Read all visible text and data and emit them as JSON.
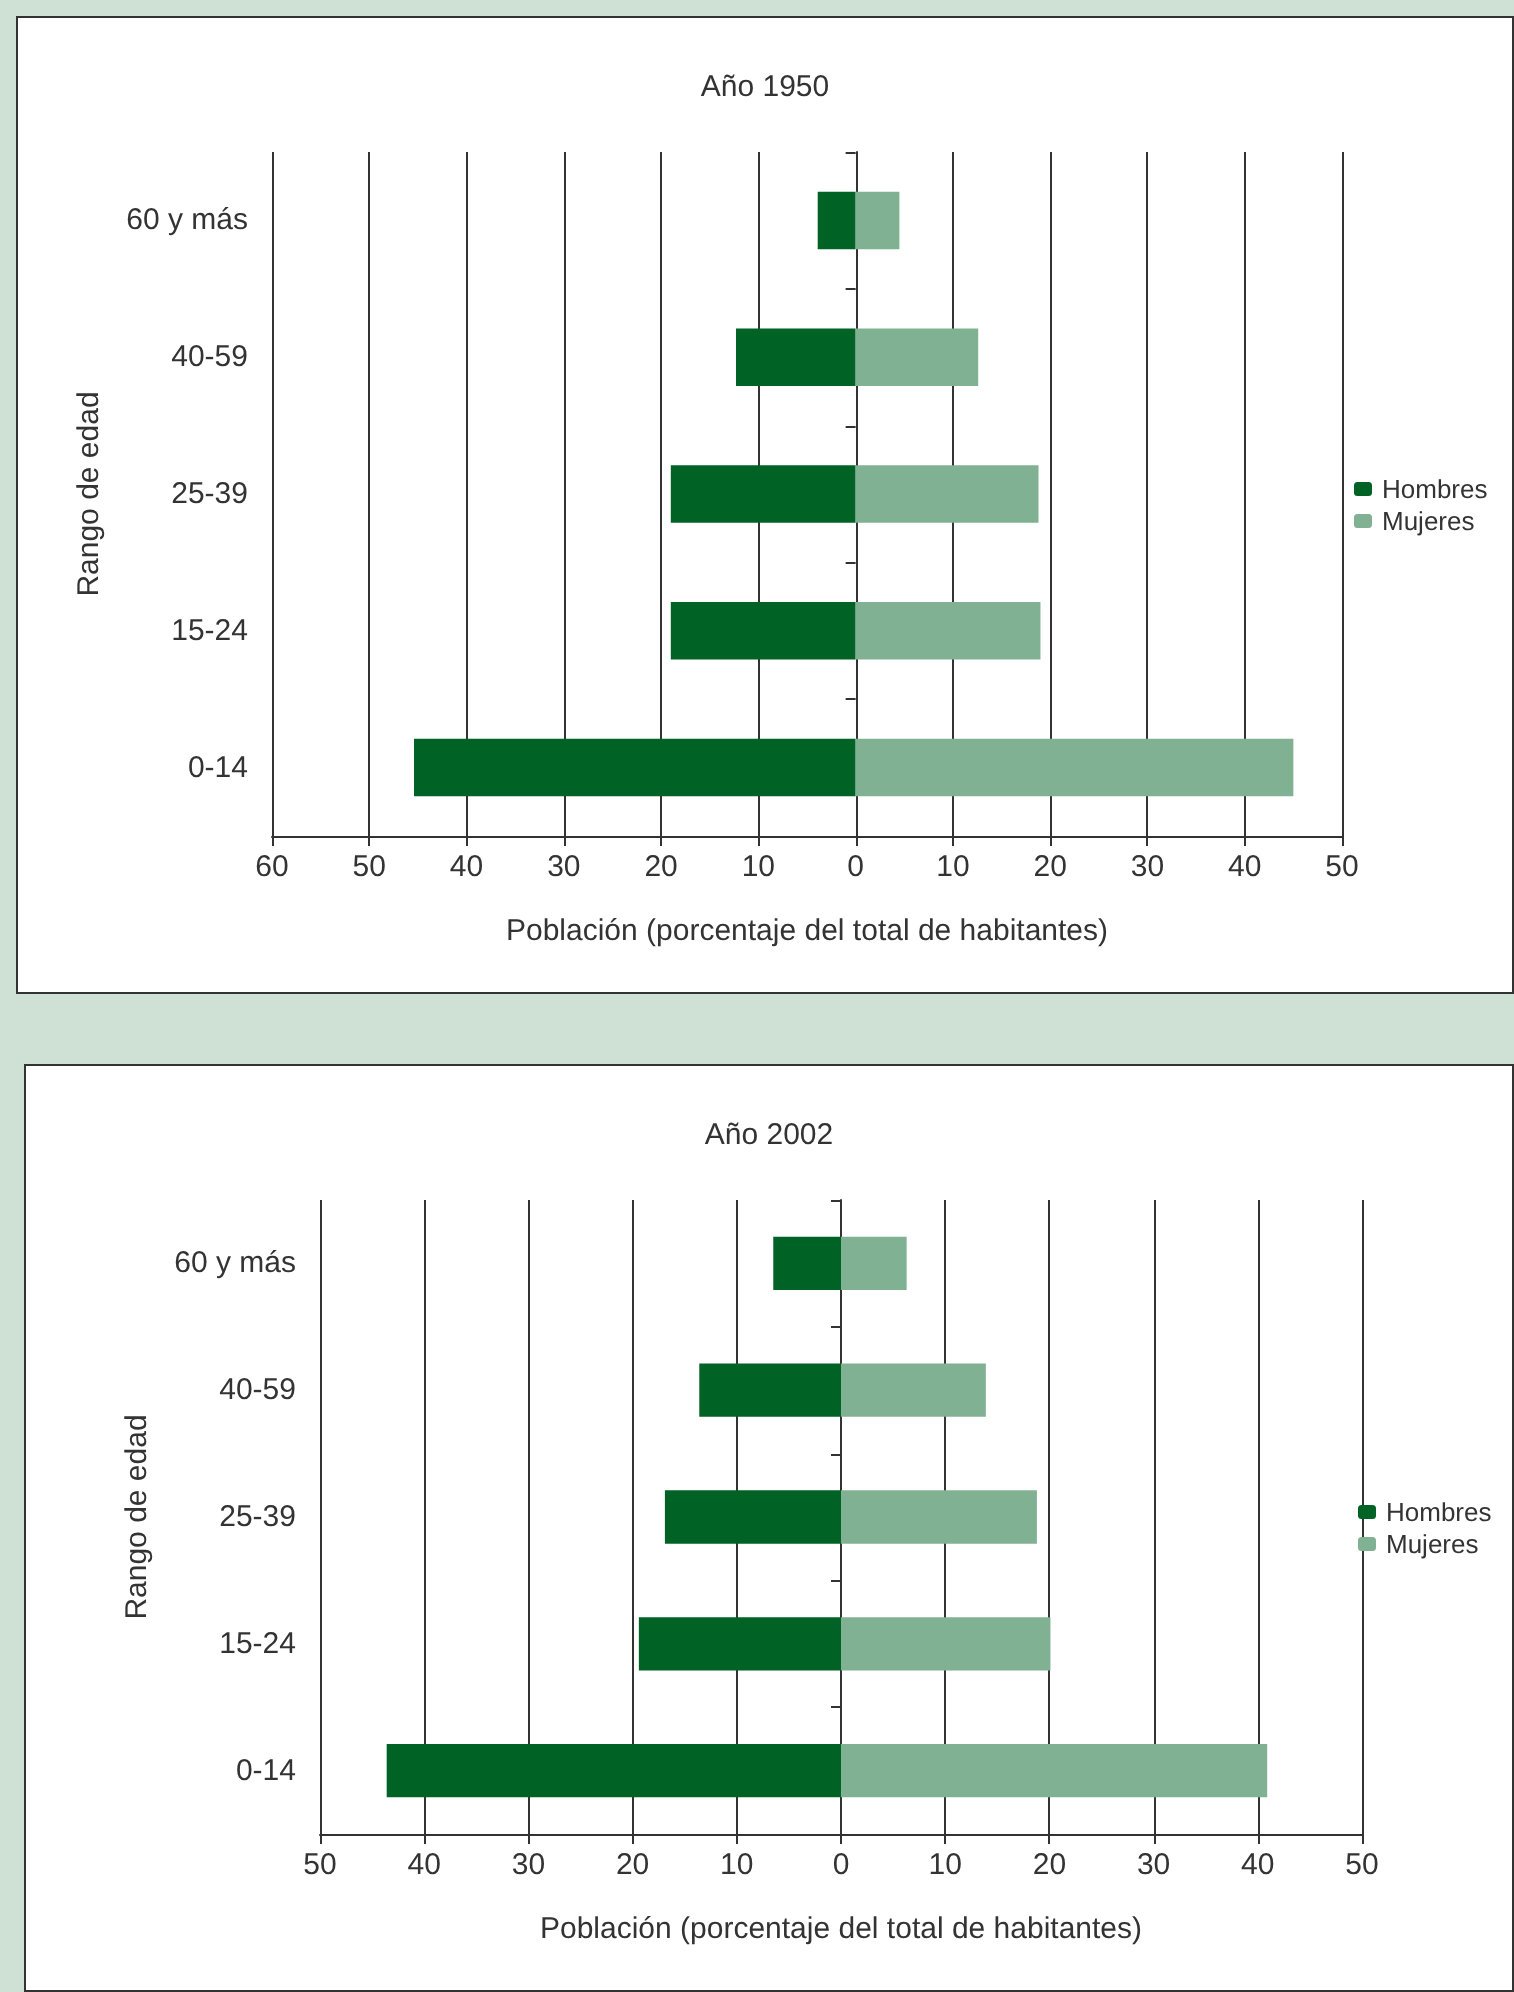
{
  "chart_data": [
    {
      "type": "bar",
      "orientation": "horizontal",
      "stacked": true,
      "title": "Año 1950",
      "ylabel": "Rango de edad",
      "xlabel": "Población (porcentaje del total de habitantes)",
      "categories": [
        "60 y más",
        "40-59",
        "25-39",
        "15-24",
        "0-14"
      ],
      "series": [
        {
          "name": "Hombres",
          "color": "#006225",
          "values": [
            -3.9,
            -12.3,
            -19,
            -19,
            -45.4
          ]
        },
        {
          "name": "Mujeres",
          "color": "#80b192",
          "values": [
            4.5,
            12.6,
            18.8,
            19,
            45
          ]
        }
      ],
      "xlim": [
        -60,
        50
      ],
      "xticks": [
        {
          "value": -60,
          "label": "60"
        },
        {
          "value": -50,
          "label": "50"
        },
        {
          "value": -40,
          "label": "40"
        },
        {
          "value": -30,
          "label": "30"
        },
        {
          "value": -20,
          "label": "20"
        },
        {
          "value": -10,
          "label": "10"
        },
        0,
        10,
        20,
        30,
        40,
        50
      ],
      "grid": "x",
      "legend": "right"
    },
    {
      "type": "bar",
      "orientation": "horizontal",
      "stacked": true,
      "title": "Año 2002",
      "ylabel": "Rango de edad",
      "xlabel": "Población (porcentaje del total de habitantes)",
      "categories": [
        "60 y más",
        "40-59",
        "25-39",
        "15-24",
        "0-14"
      ],
      "series": [
        {
          "name": "Hombres",
          "color": "#006225",
          "values": [
            -6.5,
            -13.6,
            -16.9,
            -19.4,
            -43.6
          ]
        },
        {
          "name": "Mujeres",
          "color": "#80b192",
          "values": [
            6.3,
            13.9,
            18.8,
            20.1,
            40.9
          ]
        }
      ],
      "xlim": [
        -50,
        50
      ],
      "xticks": [
        {
          "value": -50,
          "label": "50"
        },
        {
          "value": -40,
          "label": "40"
        },
        {
          "value": -30,
          "label": "30"
        },
        {
          "value": -20,
          "label": "20"
        },
        {
          "value": -10,
          "label": "10"
        },
        0,
        10,
        20,
        30,
        40,
        50
      ],
      "grid": "x",
      "legend": "right"
    }
  ]
}
